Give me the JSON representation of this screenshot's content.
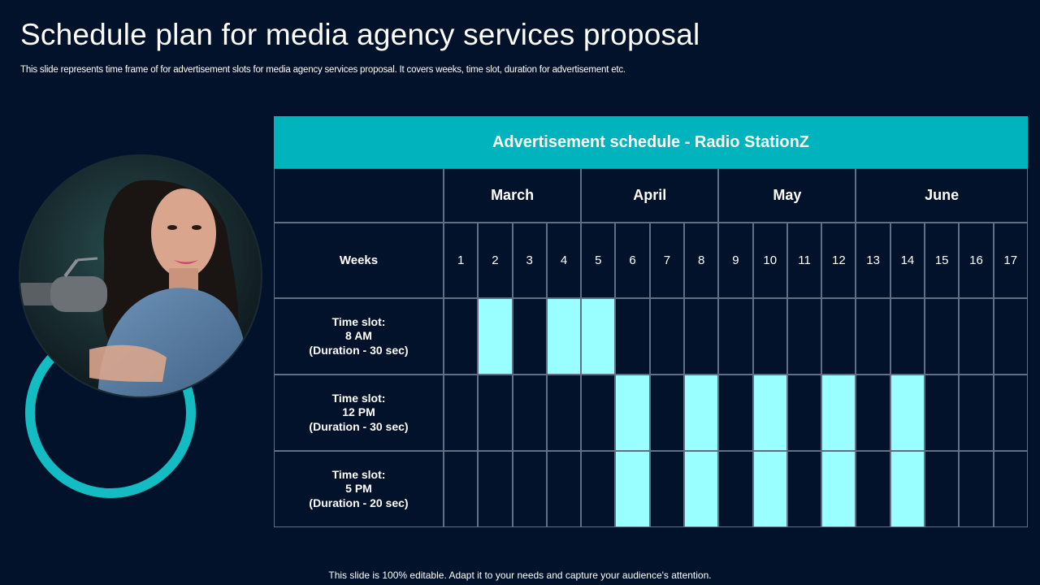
{
  "slide": {
    "title": "Schedule plan for media agency services proposal",
    "subtitle": "This slide represents time frame of for advertisement slots for media agency services proposal. It covers weeks, time slot, duration for advertisement etc.",
    "footer": "This slide is 100% editable. Adapt it to your needs and capture your audience's attention."
  },
  "colors": {
    "background": "#02122a",
    "header": "#00b3bd",
    "filled_cell": "#99ffff",
    "ring": "#13bcc3",
    "grid": "#5f6f84"
  },
  "illustration": {
    "icon": "woman-with-microphone-photo",
    "ring_icon": "teal-ring-shape"
  },
  "schedule": {
    "header": "Advertisement  schedule  - Radio StationZ",
    "months": [
      {
        "label": "March",
        "weeks": 4
      },
      {
        "label": "April",
        "weeks": 4
      },
      {
        "label": "May",
        "weeks": 4
      },
      {
        "label": "June",
        "weeks": 5
      }
    ],
    "weeks_label": "Weeks",
    "weeks": [
      "1",
      "2",
      "3",
      "4",
      "5",
      "6",
      "7",
      "8",
      "9",
      "10",
      "11",
      "12",
      "13",
      "14",
      "15",
      "16",
      "17"
    ],
    "rows": [
      {
        "line1": "Time slot:",
        "line2": "8 AM",
        "line3": "(Duration - 30 sec)",
        "scheduled_weeks": [
          2,
          4,
          5
        ]
      },
      {
        "line1": "Time slot:",
        "line2": "12 PM",
        "line3": "(Duration - 30 sec)",
        "scheduled_weeks": [
          6,
          8,
          10,
          12,
          14
        ]
      },
      {
        "line1": "Time slot:",
        "line2": "5 PM",
        "line3": "(Duration - 20 sec)",
        "scheduled_weeks": [
          6,
          8,
          10,
          12,
          14
        ]
      }
    ]
  }
}
